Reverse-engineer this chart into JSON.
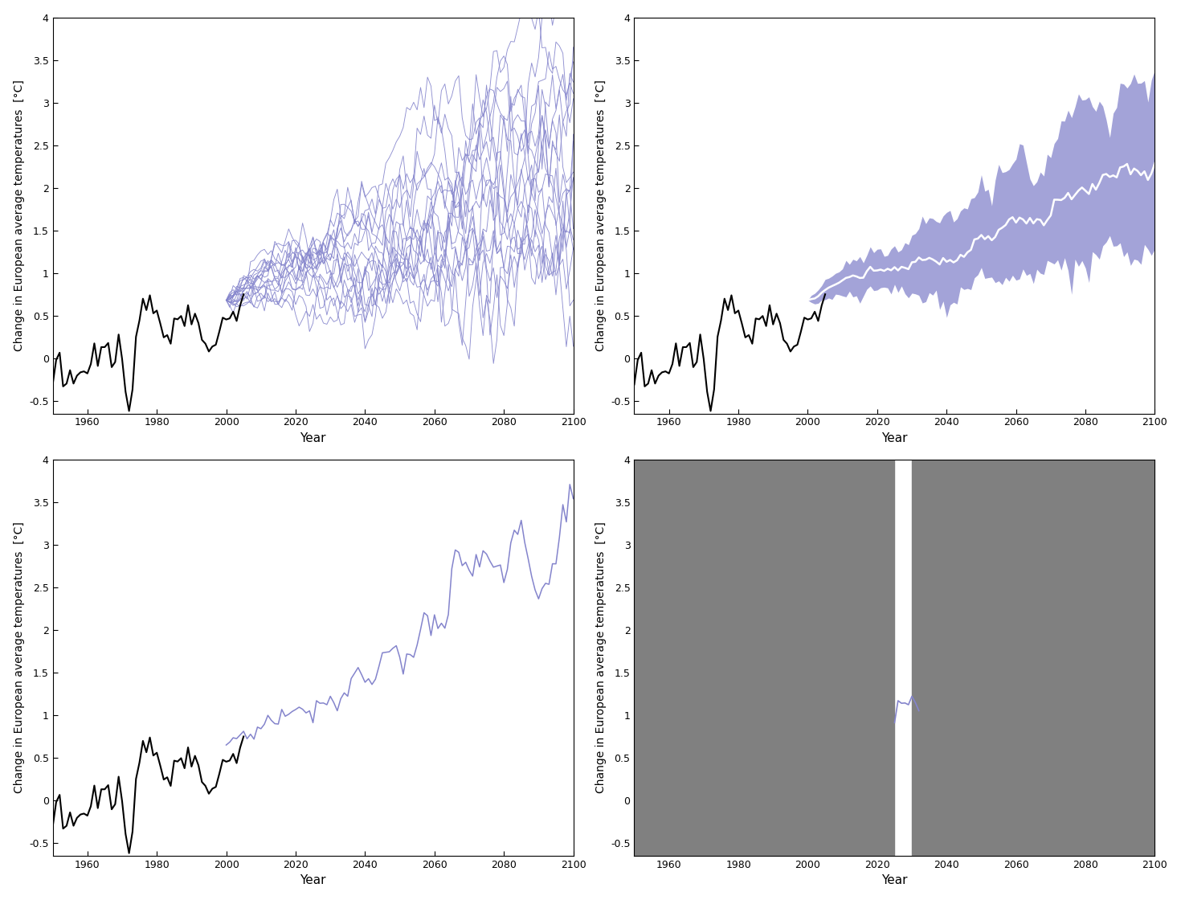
{
  "xlim": [
    1950,
    2100
  ],
  "ylim": [
    -0.65,
    4.0
  ],
  "xticks": [
    1960,
    1980,
    2000,
    2020,
    2040,
    2060,
    2080,
    2100
  ],
  "yticks": [
    -0.5,
    0.0,
    0.5,
    1.0,
    1.5,
    2.0,
    2.5,
    3.0,
    3.5,
    4.0
  ],
  "ytick_labels": [
    "-0.5",
    "0",
    "0.5",
    "1",
    "1.5",
    "2",
    "2.5",
    "3",
    "3.5",
    "4"
  ],
  "ylabel": "Change in European average temperatures  [°C]",
  "xlabel": "Year",
  "obs_color": "#000000",
  "proj_color": "#8484cc",
  "mean_color": "#ffffff",
  "gray_color": "#808080",
  "obs_start": 1950,
  "obs_end": 2005,
  "proj_start": 2000,
  "proj_end": 2100,
  "n_ensemble": 17,
  "seed": 42,
  "gray_block1_end": 2025,
  "gray_block2_start": 2030,
  "partial_start": 2025,
  "partial_end": 2032
}
